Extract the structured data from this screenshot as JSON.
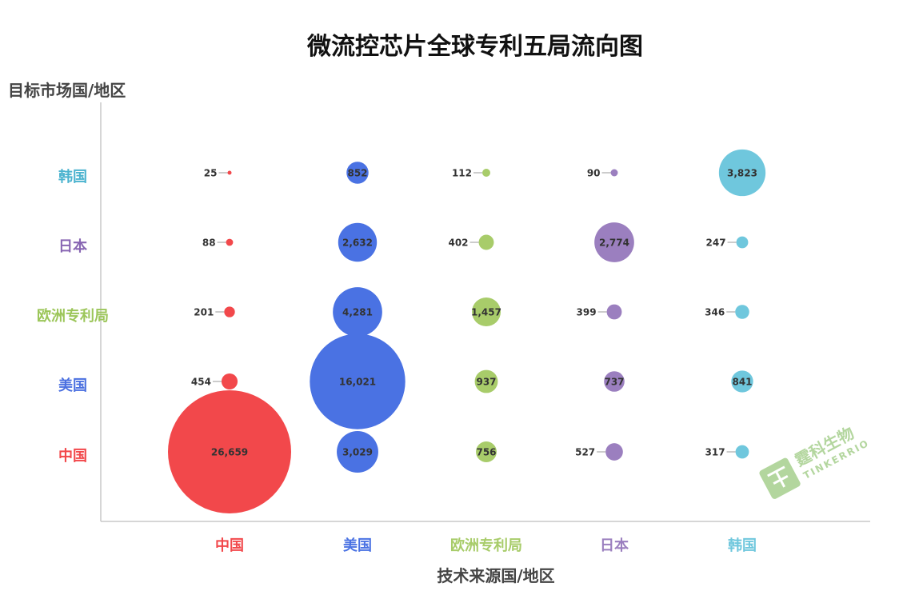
{
  "chart_data": {
    "type": "bubble",
    "title": "微流控芯片全球专利五局流向图",
    "xlabel": "技术来源国/地区",
    "ylabel": "目标市场国/地区",
    "x_categories": [
      {
        "name": "中国",
        "color": "#f2484b"
      },
      {
        "name": "美国",
        "color": "#4a72e3"
      },
      {
        "name": "欧洲专利局",
        "color": "#a8cc6a"
      },
      {
        "name": "日本",
        "color": "#9b7fbf"
      },
      {
        "name": "韩国",
        "color": "#6fc7dd"
      }
    ],
    "y_categories": [
      {
        "name": "韩国",
        "color": "#4bb3cf"
      },
      {
        "name": "日本",
        "color": "#8866b3"
      },
      {
        "name": "欧洲专利局",
        "color": "#9cc65a"
      },
      {
        "name": "美国",
        "color": "#4a6fe0"
      },
      {
        "name": "中国",
        "color": "#f2484b"
      }
    ],
    "values": [
      [
        25,
        852,
        112,
        90,
        3823
      ],
      [
        88,
        2632,
        402,
        2774,
        247
      ],
      [
        201,
        4281,
        1457,
        399,
        346
      ],
      [
        454,
        16021,
        937,
        737,
        841
      ],
      [
        26659,
        3029,
        756,
        527,
        317
      ]
    ],
    "value_labels": [
      [
        "25",
        "852",
        "112",
        "90",
        "3,823"
      ],
      [
        "88",
        "2,632",
        "402",
        "2,774",
        "247"
      ],
      [
        "201",
        "4,281",
        "1,457",
        "399",
        "346"
      ],
      [
        "454",
        "16,021",
        "937",
        "737",
        "841"
      ],
      [
        "26,659",
        "3,029",
        "756",
        "527",
        "317"
      ]
    ],
    "grid": false,
    "legend": "none"
  },
  "watermark": {
    "text": "霆科生物",
    "subtext": "TINKERRIO"
  }
}
